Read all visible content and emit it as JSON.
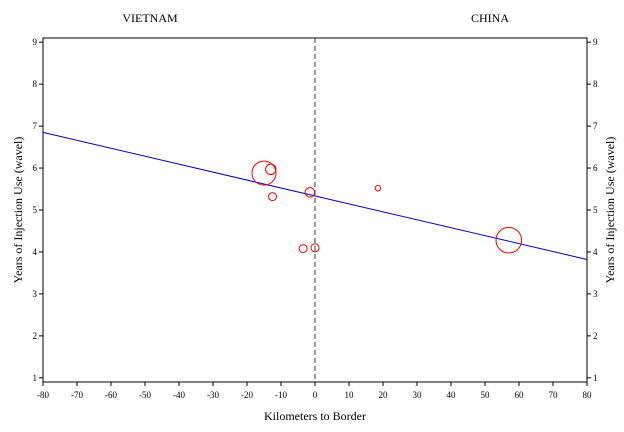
{
  "chart_data": {
    "type": "scatter",
    "region_labels": {
      "left": "VIETNAM",
      "right": "CHINA"
    },
    "xlabel": "Kilometers to Border",
    "ylabel_left": "Years of Injection Use (wavel)",
    "ylabel_right": "Years of Injection Use (wavel)",
    "xlim": [
      -80,
      80
    ],
    "ylim": [
      0.9,
      9.1
    ],
    "x_ticks": [
      -80,
      -70,
      -60,
      -50,
      -40,
      -30,
      -20,
      -10,
      0,
      10,
      20,
      30,
      40,
      50,
      60,
      70,
      80
    ],
    "y_ticks": [
      1,
      2,
      3,
      4,
      5,
      6,
      7,
      8,
      9
    ],
    "grid": false,
    "border_x": 0,
    "points": [
      {
        "x": -15,
        "y": 5.88,
        "size": 3.0
      },
      {
        "x": -13,
        "y": 5.97,
        "size": 1.3
      },
      {
        "x": -12.5,
        "y": 5.32,
        "size": 1.0
      },
      {
        "x": -1.5,
        "y": 5.42,
        "size": 1.2
      },
      {
        "x": 18.5,
        "y": 5.52,
        "size": 0.7
      },
      {
        "x": -3.5,
        "y": 4.08,
        "size": 1.0
      },
      {
        "x": 0,
        "y": 4.1,
        "size": 1.0
      },
      {
        "x": 57,
        "y": 4.28,
        "size": 3.2
      }
    ],
    "fit_line": {
      "x": [
        -80,
        80
      ],
      "y": [
        6.85,
        3.82
      ]
    },
    "colors": {
      "points": "#ff0000",
      "line": "#0000cc",
      "axes": "#000000",
      "border_line": "#333333"
    }
  }
}
